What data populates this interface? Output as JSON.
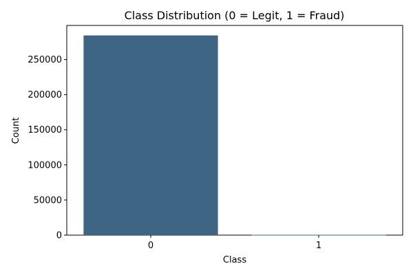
{
  "chart_data": {
    "type": "bar",
    "title": "Class Distribution (0 = Legit, 1 = Fraud)",
    "xlabel": "Class",
    "ylabel": "Count",
    "categories": [
      "0",
      "1"
    ],
    "values": [
      284315,
      492
    ],
    "bar_colors": [
      "#3e6583",
      "#2b7a68"
    ],
    "ylim": [
      0,
      298531
    ],
    "yticks": [
      0,
      50000,
      100000,
      150000,
      200000,
      250000
    ],
    "ytick_labels": [
      "0",
      "50000",
      "100000",
      "150000",
      "200000",
      "250000"
    ],
    "grid": false,
    "legend": "none"
  }
}
